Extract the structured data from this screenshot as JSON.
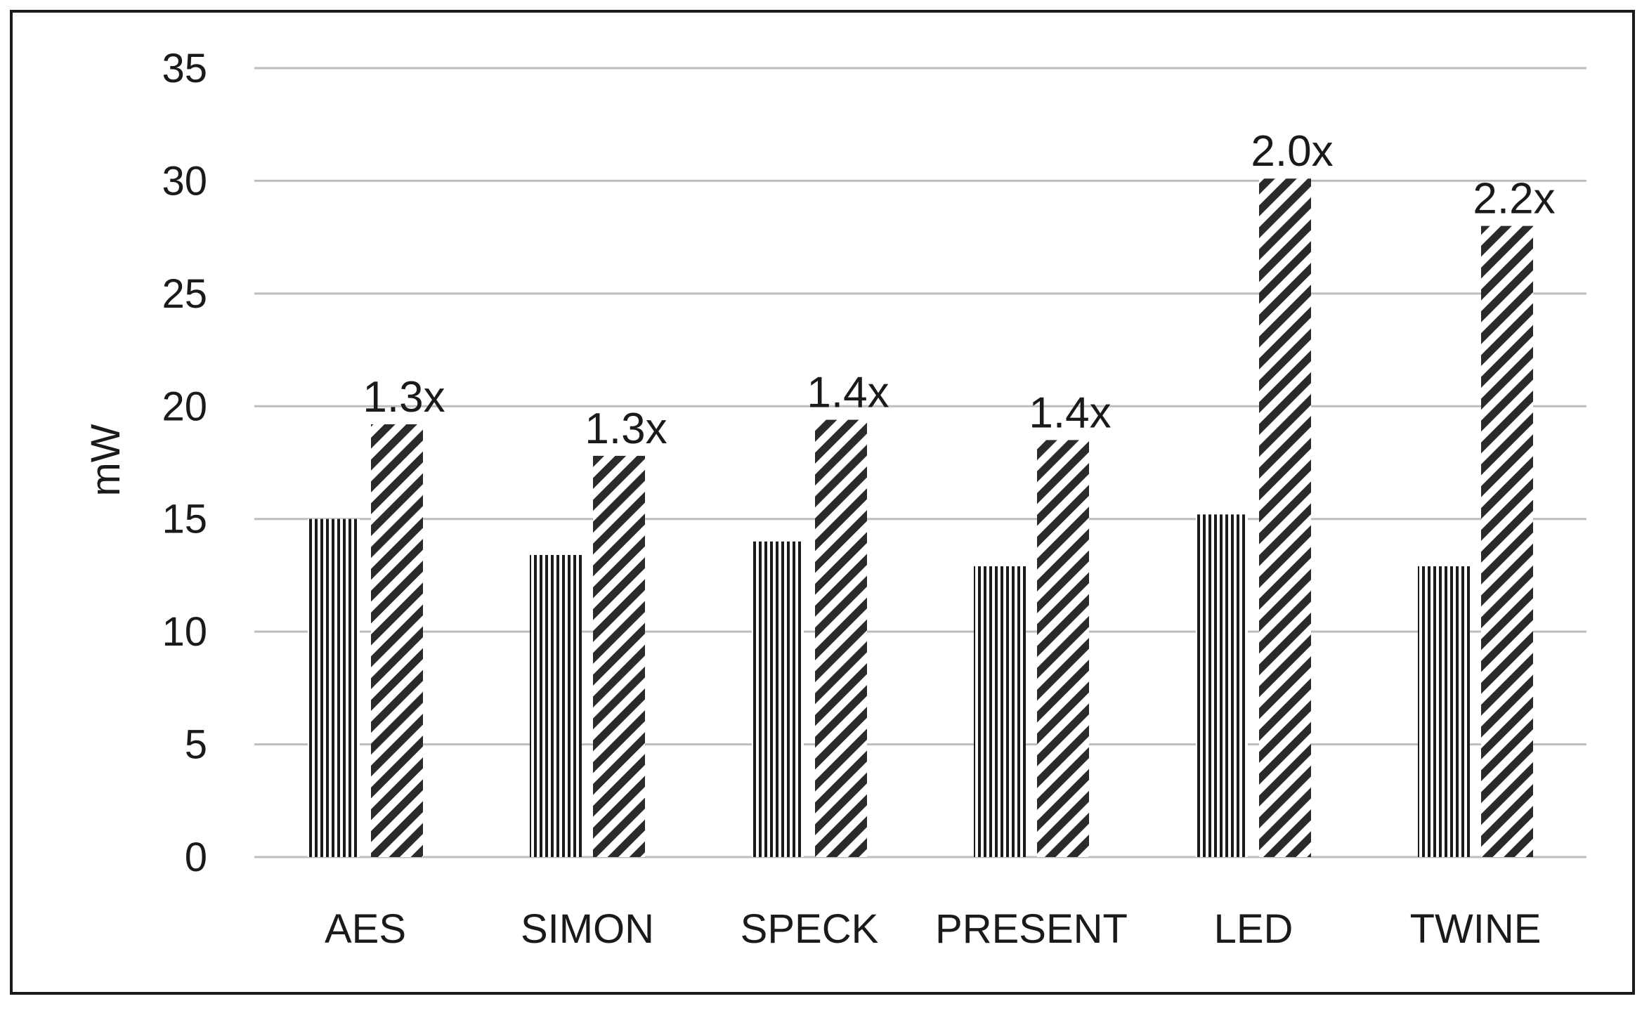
{
  "chart_data": {
    "type": "bar",
    "title": "",
    "xlabel": "",
    "ylabel": "mW",
    "ylim": [
      0,
      35
    ],
    "yticks": [
      0,
      5,
      10,
      15,
      20,
      25,
      30,
      35
    ],
    "grid": true,
    "legend": "none",
    "categories": [
      "AES",
      "SIMON",
      "SPECK",
      "PRESENT",
      "LED",
      "TWINE"
    ],
    "series": [
      {
        "pattern": "vertical-lines",
        "color": "#1a1a1a",
        "values": [
          15.0,
          13.4,
          14.0,
          12.9,
          15.2,
          12.9
        ]
      },
      {
        "pattern": "diagonal-hatch",
        "color": "#1a1a1a",
        "values": [
          19.2,
          17.8,
          19.4,
          18.5,
          30.1,
          28.0
        ],
        "data_labels": [
          "1.3x",
          "1.3x",
          "1.4x",
          "1.4x",
          "2.0x",
          "2.2x"
        ]
      }
    ]
  }
}
